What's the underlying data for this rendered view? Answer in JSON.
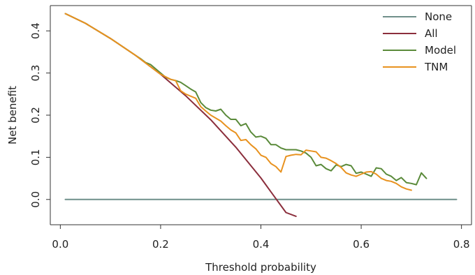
{
  "chart_data": {
    "type": "line",
    "title": "",
    "xlabel": "Threshold probability",
    "ylabel": "Net benefit",
    "xlim": [
      -0.02,
      0.82
    ],
    "ylim": [
      -0.06,
      0.46
    ],
    "x_ticks": [
      0.0,
      0.2,
      0.4,
      0.6,
      0.8
    ],
    "x_tick_labels": [
      "0.0",
      "0.2",
      "0.4",
      "0.6",
      "0.8"
    ],
    "y_ticks": [
      0.0,
      0.1,
      0.2,
      0.3,
      0.4
    ],
    "y_tick_labels": [
      "0.0",
      "0.1",
      "0.2",
      "0.3",
      "0.4"
    ],
    "grid": false,
    "legend_position": "top-right",
    "series": [
      {
        "name": "None",
        "color": "#6f8f8a",
        "x": [
          0.01,
          0.79
        ],
        "y": [
          0.0,
          0.0
        ]
      },
      {
        "name": "All",
        "color": "#8b2e3c",
        "x": [
          0.01,
          0.05,
          0.1,
          0.15,
          0.2,
          0.25,
          0.3,
          0.35,
          0.4,
          0.42,
          0.45,
          0.47
        ],
        "y": [
          0.441,
          0.418,
          0.382,
          0.342,
          0.297,
          0.246,
          0.189,
          0.124,
          0.051,
          0.018,
          -0.031,
          -0.04
        ]
      },
      {
        "name": "Model",
        "color": "#5a8a3a",
        "x": [
          0.01,
          0.05,
          0.1,
          0.15,
          0.16,
          0.17,
          0.18,
          0.19,
          0.2,
          0.21,
          0.22,
          0.23,
          0.24,
          0.25,
          0.26,
          0.27,
          0.28,
          0.29,
          0.3,
          0.31,
          0.32,
          0.33,
          0.34,
          0.35,
          0.36,
          0.37,
          0.38,
          0.39,
          0.4,
          0.41,
          0.42,
          0.43,
          0.44,
          0.45,
          0.46,
          0.47,
          0.48,
          0.49,
          0.5,
          0.51,
          0.52,
          0.53,
          0.54,
          0.55,
          0.56,
          0.57,
          0.58,
          0.59,
          0.6,
          0.61,
          0.62,
          0.63,
          0.64,
          0.65,
          0.66,
          0.67,
          0.68,
          0.69,
          0.7,
          0.71,
          0.72,
          0.73
        ],
        "y": [
          0.441,
          0.418,
          0.382,
          0.342,
          0.334,
          0.325,
          0.32,
          0.31,
          0.3,
          0.29,
          0.285,
          0.282,
          0.278,
          0.27,
          0.262,
          0.255,
          0.23,
          0.218,
          0.212,
          0.21,
          0.214,
          0.2,
          0.19,
          0.19,
          0.175,
          0.18,
          0.16,
          0.148,
          0.15,
          0.145,
          0.13,
          0.13,
          0.122,
          0.118,
          0.118,
          0.118,
          0.115,
          0.11,
          0.1,
          0.08,
          0.083,
          0.073,
          0.068,
          0.082,
          0.078,
          0.083,
          0.08,
          0.062,
          0.065,
          0.06,
          0.055,
          0.075,
          0.073,
          0.06,
          0.055,
          0.045,
          0.052,
          0.04,
          0.038,
          0.035,
          0.063,
          0.05
        ]
      },
      {
        "name": "TNM",
        "color": "#e8921f",
        "x": [
          0.01,
          0.05,
          0.1,
          0.15,
          0.2,
          0.22,
          0.23,
          0.24,
          0.25,
          0.26,
          0.27,
          0.28,
          0.29,
          0.3,
          0.31,
          0.32,
          0.33,
          0.34,
          0.35,
          0.36,
          0.37,
          0.38,
          0.39,
          0.4,
          0.41,
          0.42,
          0.43,
          0.44,
          0.45,
          0.46,
          0.47,
          0.48,
          0.49,
          0.5,
          0.51,
          0.52,
          0.53,
          0.54,
          0.55,
          0.56,
          0.57,
          0.58,
          0.59,
          0.6,
          0.61,
          0.62,
          0.63,
          0.64,
          0.65,
          0.66,
          0.67,
          0.68,
          0.69,
          0.7
        ],
        "y": [
          0.441,
          0.418,
          0.382,
          0.342,
          0.297,
          0.285,
          0.282,
          0.258,
          0.25,
          0.245,
          0.24,
          0.22,
          0.21,
          0.2,
          0.193,
          0.186,
          0.175,
          0.165,
          0.158,
          0.14,
          0.142,
          0.13,
          0.12,
          0.105,
          0.1,
          0.085,
          0.078,
          0.065,
          0.102,
          0.105,
          0.107,
          0.106,
          0.117,
          0.115,
          0.113,
          0.1,
          0.098,
          0.092,
          0.085,
          0.076,
          0.063,
          0.058,
          0.055,
          0.06,
          0.065,
          0.066,
          0.06,
          0.05,
          0.045,
          0.043,
          0.038,
          0.03,
          0.025,
          0.022
        ]
      }
    ]
  }
}
